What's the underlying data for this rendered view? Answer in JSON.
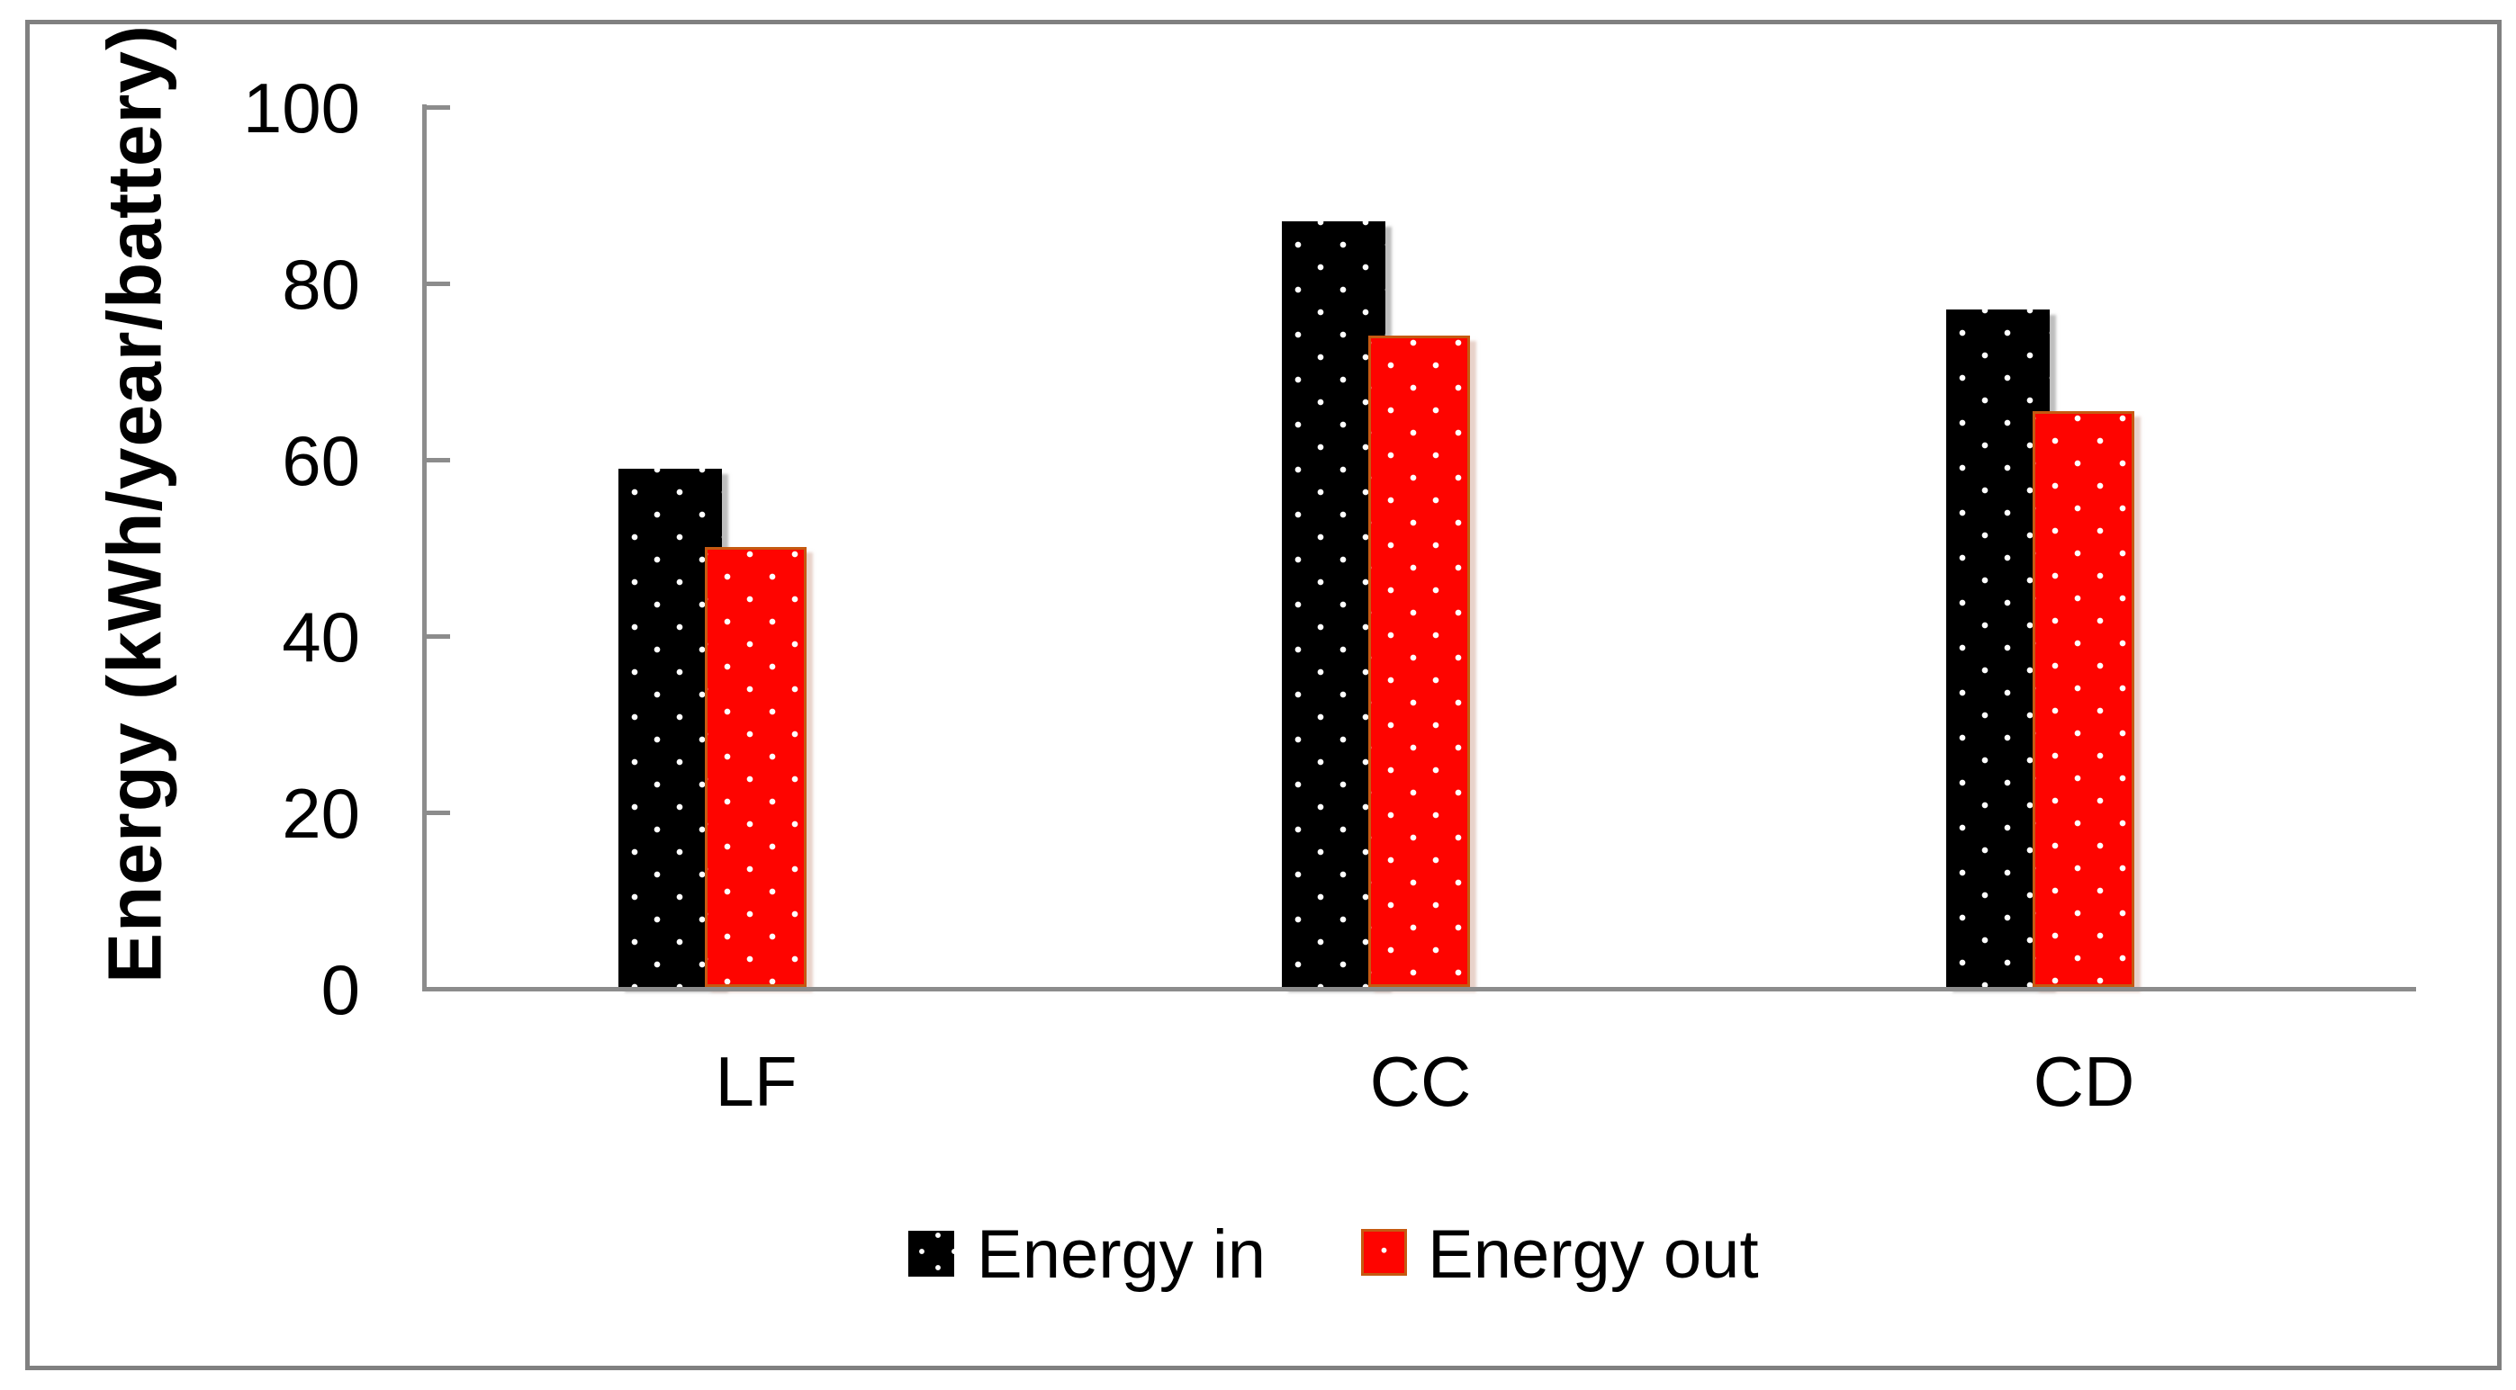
{
  "chart_data": {
    "type": "bar",
    "title": "",
    "categories": [
      "LF",
      "CC",
      "CD"
    ],
    "series": [
      {
        "name": "Energy in",
        "color": "#000000",
        "pattern": "white dots on black",
        "values": [
          58.8,
          86.9,
          76.9
        ]
      },
      {
        "name": "Energy out",
        "color": "#FE0400",
        "border_color": "#C55A11",
        "pattern": "white dots on red",
        "values": [
          50.0,
          74.0,
          65.4
        ]
      }
    ],
    "xlabel": "",
    "ylabel": "Energy (kWh/year/battery)",
    "ylim": [
      0,
      100
    ],
    "yticks": [
      0,
      20,
      40,
      60,
      80,
      100
    ],
    "grid": false,
    "legend_position": "bottom-center",
    "axis_color": "#8C8C8C",
    "frame_color": "#808080",
    "background_color": "#FFFFFF"
  }
}
